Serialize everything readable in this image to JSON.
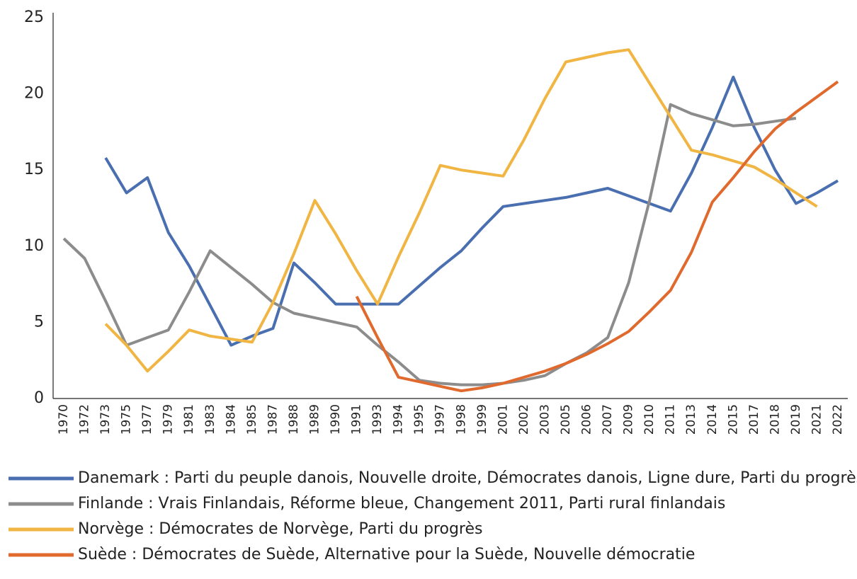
{
  "chart_data": {
    "type": "line",
    "categories": [
      "1970",
      "1972",
      "1973",
      "1975",
      "1977",
      "1979",
      "1981",
      "1983",
      "1984",
      "1985",
      "1987",
      "1988",
      "1989",
      "1990",
      "1991",
      "1993",
      "1994",
      "1995",
      "1997",
      "1998",
      "1999",
      "2001",
      "2002",
      "2003",
      "2005",
      "2006",
      "2007",
      "2009",
      "2010",
      "2011",
      "2013",
      "2014",
      "2015",
      "2017",
      "2018",
      "2019",
      "2021",
      "2022"
    ],
    "series": [
      {
        "name": "Danemark : Parti du peuple danois, Nouvelle droite, Démocrates danois, Ligne dure, Parti du progrès",
        "color": "#4a6fb0",
        "values": [
          null,
          null,
          15.8,
          13.5,
          14.5,
          10.9,
          8.7,
          6.1,
          3.5,
          4.1,
          4.6,
          8.9,
          7.6,
          6.2,
          6.2,
          6.2,
          6.2,
          7.4,
          8.6,
          9.7,
          11.2,
          12.6,
          12.8,
          13.0,
          13.2,
          13.5,
          13.8,
          13.3,
          12.8,
          12.3,
          14.8,
          17.8,
          21.1,
          17.8,
          15.0,
          12.8,
          13.5,
          14.3
        ]
      },
      {
        "name": "Finlande : Vrais Finlandais, Réforme bleue, Changement 2011, Parti rural finlandais",
        "color": "#8c8c8c",
        "values": [
          10.5,
          9.2,
          6.4,
          3.5,
          4.0,
          4.5,
          7.0,
          9.7,
          8.6,
          7.5,
          6.3,
          5.6,
          5.3,
          5.0,
          4.7,
          3.5,
          2.4,
          1.2,
          1.0,
          0.9,
          0.9,
          1.0,
          1.2,
          1.5,
          2.3,
          3.0,
          4.0,
          7.6,
          13.0,
          19.3,
          18.7,
          18.3,
          17.9,
          18.0,
          18.2,
          18.4,
          null,
          null
        ]
      },
      {
        "name": "Norvège : Démocrates de Norvège, Parti du progrès",
        "color": "#f0b542",
        "values": [
          null,
          null,
          4.9,
          3.5,
          1.8,
          3.1,
          4.5,
          4.1,
          3.9,
          3.7,
          6.3,
          9.5,
          13.0,
          10.8,
          8.4,
          6.2,
          9.3,
          12.2,
          15.3,
          15.0,
          14.8,
          14.6,
          17.0,
          19.7,
          22.1,
          22.4,
          22.7,
          22.9,
          20.7,
          18.5,
          16.3,
          16.0,
          15.6,
          15.2,
          14.4,
          13.5,
          12.6,
          null
        ]
      },
      {
        "name": "Suède : Démocrates de Suède, Alternative pour la Suède, Nouvelle démocratie",
        "color": "#e0692d",
        "values": [
          null,
          null,
          null,
          null,
          null,
          null,
          null,
          null,
          null,
          null,
          null,
          null,
          null,
          null,
          6.7,
          4.0,
          1.4,
          1.1,
          0.8,
          0.5,
          0.7,
          1.0,
          1.4,
          1.8,
          2.3,
          2.9,
          3.6,
          4.4,
          5.7,
          7.1,
          9.6,
          12.9,
          14.5,
          16.2,
          17.7,
          18.8,
          19.8,
          20.8
        ]
      }
    ],
    "ylim": [
      0,
      25
    ],
    "yticks": [
      0,
      5,
      10,
      15,
      20,
      25
    ]
  }
}
